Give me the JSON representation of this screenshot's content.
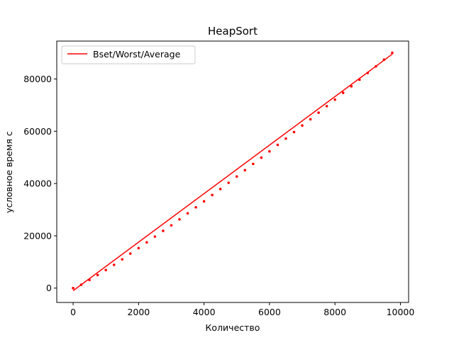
{
  "chart_data": {
    "type": "line",
    "title": "HeapSort",
    "xlabel": "Количество",
    "ylabel": "условное время с",
    "xlim": [
      -500,
      10250
    ],
    "ylim": [
      -5500,
      94500
    ],
    "xticks": [
      0,
      2000,
      4000,
      6000,
      8000,
      10000
    ],
    "yticks": [
      0,
      20000,
      40000,
      60000,
      80000
    ],
    "xtick_labels": [
      "0",
      "2000",
      "4000",
      "6000",
      "8000",
      "10000"
    ],
    "ytick_labels": [
      "0",
      "20000",
      "40000",
      "60000",
      "80000"
    ],
    "grid": false,
    "legend": {
      "placement": "upper-left",
      "entries": [
        "Bset/Worst/Average"
      ]
    },
    "series": [
      {
        "name": "Bset/Worst/Average",
        "color": "#ff0000",
        "style": "fit-line",
        "x": [
          0,
          9750
        ],
        "y": [
          -1000,
          89500
        ]
      },
      {
        "name": "",
        "color": "#ff0000",
        "style": "points",
        "x": [
          0,
          250,
          500,
          750,
          1000,
          1250,
          1500,
          1750,
          2000,
          2250,
          2500,
          2750,
          3000,
          3250,
          3500,
          3750,
          4000,
          4250,
          4500,
          4750,
          5000,
          5250,
          5500,
          5750,
          6000,
          6250,
          6500,
          6750,
          7000,
          7250,
          7500,
          7750,
          8000,
          8250,
          8500,
          8750,
          9000,
          9250,
          9500,
          9750
        ],
        "y": [
          0,
          1300,
          3100,
          5000,
          6900,
          8900,
          11000,
          13200,
          15300,
          17500,
          19700,
          21900,
          24000,
          26300,
          28600,
          30900,
          33200,
          35600,
          37900,
          40300,
          42700,
          45100,
          47500,
          49900,
          52300,
          54800,
          57200,
          59700,
          62200,
          64600,
          67100,
          69600,
          72100,
          74700,
          77200,
          79700,
          82300,
          84800,
          87400,
          90000
        ]
      }
    ]
  }
}
